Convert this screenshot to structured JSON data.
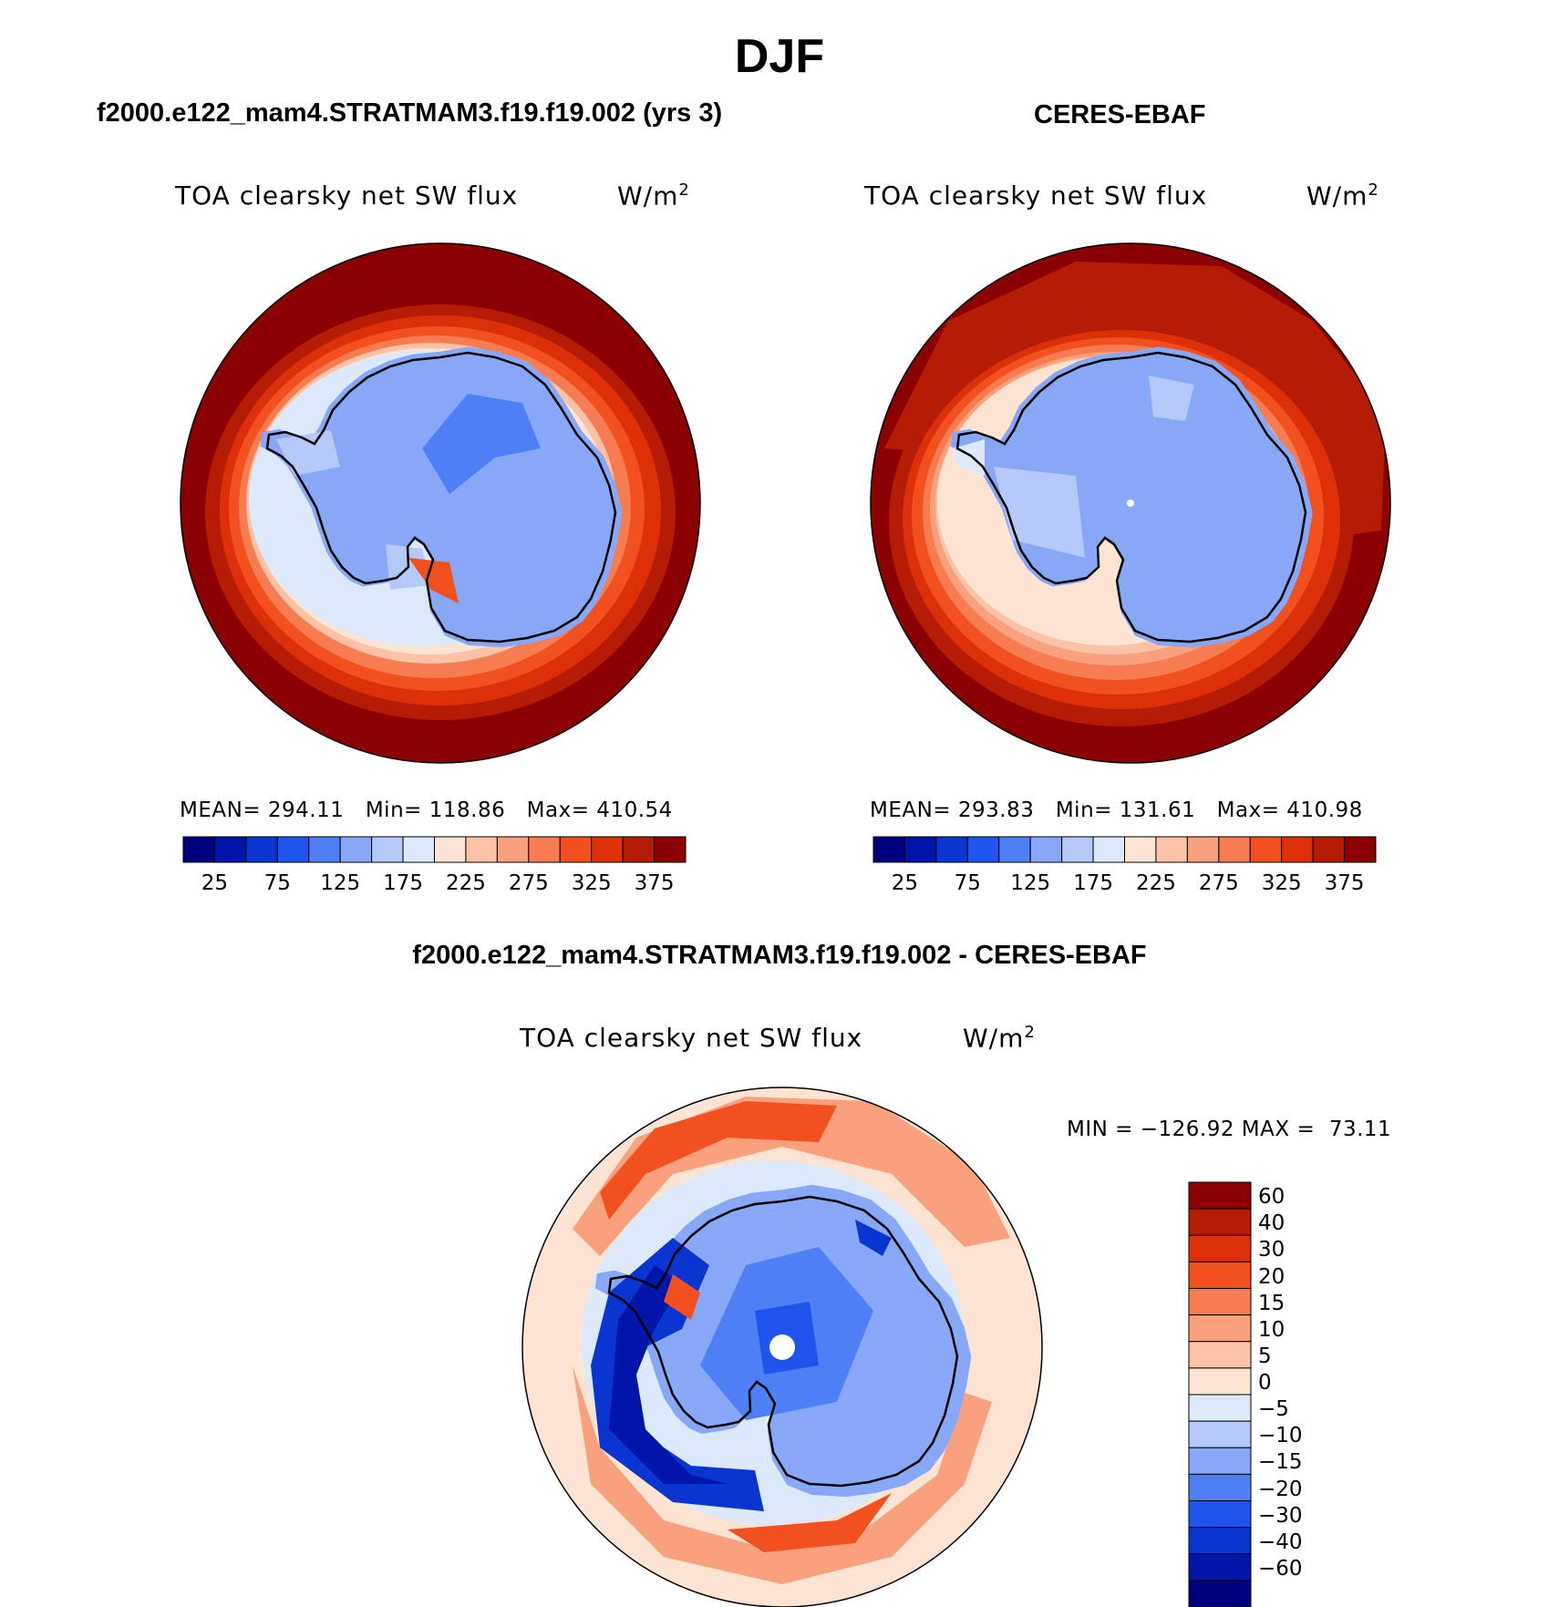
{
  "figure": {
    "season": "DJF",
    "left_case_title": "f2000.e122_mam4.STRATMAM3.f19.f19.002 (yrs 3)",
    "right_case_title": "CERES-EBAF",
    "diff_title": "f2000.e122_mam4.STRATMAM3.f19.f19.002 - CERES-EBAF"
  },
  "panels": {
    "model": {
      "variable": "TOA clearsky net SW flux",
      "units": "W/m",
      "units_exp": "2",
      "mean_label": "MEAN=",
      "mean": "294.11",
      "min_label": "Min=",
      "min": "118.86",
      "max_label": "Max=",
      "max": "410.54"
    },
    "obs": {
      "variable": "TOA clearsky net SW flux",
      "units": "W/m",
      "units_exp": "2",
      "mean_label": "MEAN=",
      "mean": "293.83",
      "min_label": "Min=",
      "min": "131.61",
      "max_label": "Max=",
      "max": "410.98"
    },
    "diff": {
      "variable": "TOA clearsky net SW flux",
      "units": "W/m",
      "units_exp": "2",
      "min_label": "MIN =",
      "min": "−126.92",
      "max_label": "MAX =",
      "max": "73.11"
    }
  },
  "colorbars": {
    "absolute": {
      "colors": [
        "#00007f",
        "#0016a9",
        "#0a35d0",
        "#1f55ee",
        "#4f7ff5",
        "#87a8f7",
        "#b4c9f8",
        "#dbe9fb",
        "#fde3d2",
        "#fbc2a6",
        "#f9a07c",
        "#f77c51",
        "#f2501f",
        "#dd3009",
        "#b51c05",
        "#8b0000"
      ],
      "tick_labels": [
        "25",
        "75",
        "125",
        "175",
        "225",
        "275",
        "325",
        "375"
      ]
    },
    "difference": {
      "colors_top_to_bottom": [
        "#8b0000",
        "#b51c05",
        "#dd3009",
        "#f2501f",
        "#f77c51",
        "#f9a07c",
        "#fbc2a6",
        "#fde3d2",
        "#dbe9fb",
        "#b4c9f8",
        "#87a8f7",
        "#4f7ff5",
        "#1f55ee",
        "#0a35d0",
        "#0016a9",
        "#00007f"
      ],
      "tick_labels": [
        "60",
        "40",
        "30",
        "20",
        "15",
        "10",
        "5",
        "0",
        "−5",
        "−10",
        "−15",
        "−20",
        "−30",
        "−40",
        "−60"
      ]
    }
  }
}
